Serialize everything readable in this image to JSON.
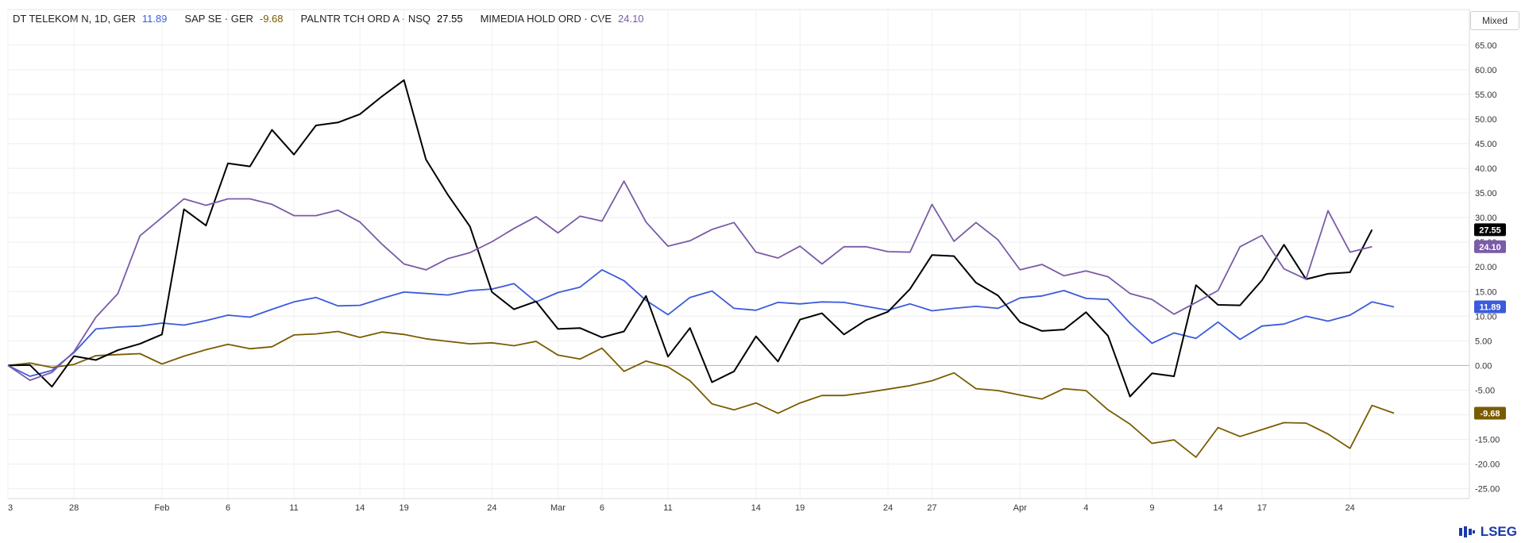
{
  "legend": [
    {
      "name": "DT TELEKOM N, 1D, GER",
      "value": "11.89",
      "color": "#3b5bdb"
    },
    {
      "name": "SAP SE · GER",
      "value": "-9.68",
      "color": "#7a5c00"
    },
    {
      "name": "PALNTR TCH ORD A · NSQ",
      "value": "27.55",
      "color": "#000000"
    },
    {
      "name": "MIMEDIA HOLD ORD · CVE",
      "value": "24.10",
      "color": "#7a5ba8"
    }
  ],
  "mode_button": "Mixed",
  "brand": "LSEG",
  "chart_data": {
    "type": "line",
    "x_tick_labels": [
      "3",
      "28",
      "Feb",
      "6",
      "11",
      "14",
      "19",
      "24",
      "Mar",
      "6",
      "11",
      "14",
      "19",
      "24",
      "27",
      "Apr",
      "4",
      "9",
      "14",
      "17",
      "24"
    ],
    "y_tick_labels": [
      "65.00",
      "60.00",
      "55.00",
      "50.00",
      "45.00",
      "40.00",
      "35.00",
      "30.00",
      "25.00",
      "20.00",
      "15.00",
      "10.00",
      "5.00",
      "0.00",
      "-5.00",
      "-10.00",
      "-15.00",
      "-20.00",
      "-25.00"
    ],
    "ylim": [
      -27,
      69
    ],
    "grid": true,
    "baseline": 0,
    "series": [
      {
        "name": "DT TELEKOM N",
        "color": "#3b5bdb",
        "last_label": "11.89",
        "values": [
          0,
          -2.2,
          -1.0,
          2.6,
          7.4,
          7.8,
          8.0,
          8.6,
          8.2,
          9.1,
          10.2,
          9.8,
          11.4,
          12.9,
          13.8,
          12.1,
          12.2,
          13.6,
          14.9,
          14.6,
          14.3,
          15.2,
          15.5,
          16.6,
          12.9,
          14.8,
          15.9,
          19.4,
          17.2,
          13.2,
          10.3,
          13.8,
          15.1,
          11.6,
          11.2,
          12.8,
          12.5,
          12.9,
          12.8,
          12.0,
          11.2,
          12.5,
          11.1,
          11.6,
          12.0,
          11.6,
          13.7,
          14.1,
          15.2,
          13.6,
          13.4,
          8.6,
          4.5,
          6.6,
          5.5,
          8.8,
          5.3,
          8.0,
          8.4,
          10.0,
          9.0,
          10.2,
          12.9,
          11.89
        ]
      },
      {
        "name": "SAP SE",
        "color": "#7a5c00",
        "last_label": "-9.68",
        "values": [
          0,
          0.5,
          -0.4,
          0.2,
          2.0,
          2.2,
          2.4,
          0.3,
          1.9,
          3.2,
          4.3,
          3.4,
          3.8,
          6.2,
          6.4,
          6.9,
          5.7,
          6.8,
          6.3,
          5.4,
          4.9,
          4.4,
          4.6,
          4.0,
          4.9,
          2.1,
          1.3,
          3.5,
          -1.2,
          0.9,
          -0.3,
          -3.1,
          -7.8,
          -9.0,
          -7.6,
          -9.7,
          -7.6,
          -6.1,
          -6.1,
          -5.5,
          -4.8,
          -4.1,
          -3.1,
          -1.5,
          -4.7,
          -5.1,
          -6.0,
          -6.8,
          -4.7,
          -5.1,
          -9.0,
          -11.9,
          -15.8,
          -15.1,
          -18.6,
          -12.6,
          -14.4,
          -13.0,
          -11.6,
          -11.7,
          -13.9,
          -16.8,
          -8.1,
          -9.68
        ]
      },
      {
        "name": "PALNTR TCH ORD A",
        "color": "#000000",
        "last_label": "27.55",
        "values": [
          0,
          0.1,
          -4.3,
          1.9,
          1.1,
          3.1,
          4.4,
          6.3,
          31.7,
          28.4,
          41.0,
          40.4,
          47.8,
          42.8,
          48.7,
          49.3,
          51.0,
          54.6,
          57.9,
          41.8,
          34.6,
          28.2,
          14.9,
          11.4,
          13.0,
          7.4,
          7.6,
          5.7,
          6.9,
          14.1,
          1.8,
          7.6,
          -3.4,
          -1.2,
          5.9,
          0.8,
          9.3,
          10.6,
          6.3,
          9.2,
          10.9,
          15.5,
          22.4,
          22.2,
          16.8,
          14.2,
          8.8,
          7.0,
          7.3,
          10.8,
          6.0,
          -6.3,
          -1.6,
          -2.2,
          16.3,
          12.3,
          12.2,
          17.3,
          24.5,
          17.5,
          18.6,
          18.9,
          27.55
        ]
      },
      {
        "name": "MIMEDIA HOLD ORD",
        "color": "#7a5ba8",
        "last_label": "24.10",
        "values": [
          0,
          -3.0,
          -1.4,
          2.8,
          9.8,
          14.6,
          26.3,
          30.0,
          33.8,
          32.5,
          33.8,
          33.8,
          32.7,
          30.4,
          30.4,
          31.5,
          29.1,
          24.6,
          20.6,
          19.4,
          21.7,
          22.9,
          25.1,
          27.8,
          30.2,
          26.9,
          30.3,
          29.3,
          37.4,
          29.1,
          24.2,
          25.3,
          27.6,
          29.0,
          23.0,
          21.8,
          24.2,
          20.6,
          24.1,
          24.1,
          23.1,
          23.0,
          32.7,
          25.2,
          29.0,
          25.5,
          19.4,
          20.5,
          18.2,
          19.2,
          18.0,
          14.6,
          13.4,
          10.4,
          12.8,
          15.2,
          24.1,
          26.4,
          19.6,
          17.5,
          31.4,
          23.0,
          24.1
        ]
      }
    ]
  }
}
